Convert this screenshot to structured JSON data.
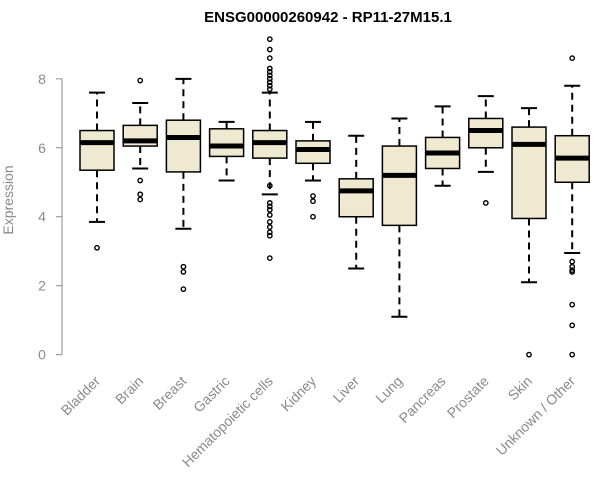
{
  "chart_data": {
    "type": "boxplot",
    "title": "ENSG00000260942 - RP11-27M15.1",
    "ylabel": "Expression",
    "xlabel": "",
    "ylim": [
      -0.3,
      9.3
    ],
    "yticks": [
      0,
      2,
      4,
      6,
      8
    ],
    "grid": false,
    "box_color": "#efe9d2",
    "categories": [
      "Bladder",
      "Brain",
      "Breast",
      "Gastric",
      "Hematopoietic cells",
      "Kidney",
      "Liver",
      "Lung",
      "Pancreas",
      "Prostate",
      "Skin",
      "Unknown / Other"
    ],
    "boxes": [
      {
        "name": "Bladder",
        "whisker_low": 3.85,
        "q1": 5.35,
        "median": 6.15,
        "q3": 6.5,
        "whisker_high": 7.6,
        "outliers": [
          3.1
        ]
      },
      {
        "name": "Brain",
        "whisker_low": 5.4,
        "q1": 6.05,
        "median": 6.2,
        "q3": 6.65,
        "whisker_high": 7.3,
        "outliers": [
          7.95,
          5.05,
          4.65,
          4.5
        ]
      },
      {
        "name": "Breast",
        "whisker_low": 3.65,
        "q1": 5.3,
        "median": 6.3,
        "q3": 6.8,
        "whisker_high": 8.0,
        "outliers": [
          2.55,
          2.4,
          1.9
        ]
      },
      {
        "name": "Gastric",
        "whisker_low": 5.05,
        "q1": 5.75,
        "median": 6.05,
        "q3": 6.55,
        "whisker_high": 6.75,
        "outliers": []
      },
      {
        "name": "Hematopoietic cells",
        "whisker_low": 4.65,
        "q1": 5.7,
        "median": 6.15,
        "q3": 6.5,
        "whisker_high": 7.6,
        "outliers": [
          9.15,
          8.85,
          8.6,
          8.3,
          8.2,
          8.1,
          8.0,
          7.9,
          7.8,
          7.7,
          4.9,
          4.4,
          4.3,
          4.2,
          4.05,
          3.85,
          3.7,
          3.55,
          3.45,
          2.8
        ]
      },
      {
        "name": "Kidney",
        "whisker_low": 5.05,
        "q1": 5.55,
        "median": 5.95,
        "q3": 6.2,
        "whisker_high": 6.75,
        "outliers": [
          4.6,
          4.45,
          4.0
        ]
      },
      {
        "name": "Liver",
        "whisker_low": 2.5,
        "q1": 4.0,
        "median": 4.75,
        "q3": 5.1,
        "whisker_high": 6.35,
        "outliers": []
      },
      {
        "name": "Lung",
        "whisker_low": 1.1,
        "q1": 3.75,
        "median": 5.2,
        "q3": 6.05,
        "whisker_high": 6.85,
        "outliers": []
      },
      {
        "name": "Pancreas",
        "whisker_low": 4.9,
        "q1": 5.4,
        "median": 5.85,
        "q3": 6.3,
        "whisker_high": 7.2,
        "outliers": []
      },
      {
        "name": "Prostate",
        "whisker_low": 5.3,
        "q1": 6.0,
        "median": 6.5,
        "q3": 6.85,
        "whisker_high": 7.5,
        "outliers": [
          4.4
        ]
      },
      {
        "name": "Skin",
        "whisker_low": 2.1,
        "q1": 3.95,
        "median": 6.1,
        "q3": 6.6,
        "whisker_high": 7.15,
        "outliers": [
          0.0
        ]
      },
      {
        "name": "Unknown / Other",
        "whisker_low": 2.95,
        "q1": 5.0,
        "median": 5.7,
        "q3": 6.35,
        "whisker_high": 7.8,
        "outliers": [
          8.6,
          2.7,
          2.55,
          2.45,
          2.4,
          1.45,
          0.85,
          0.0
        ]
      }
    ]
  }
}
